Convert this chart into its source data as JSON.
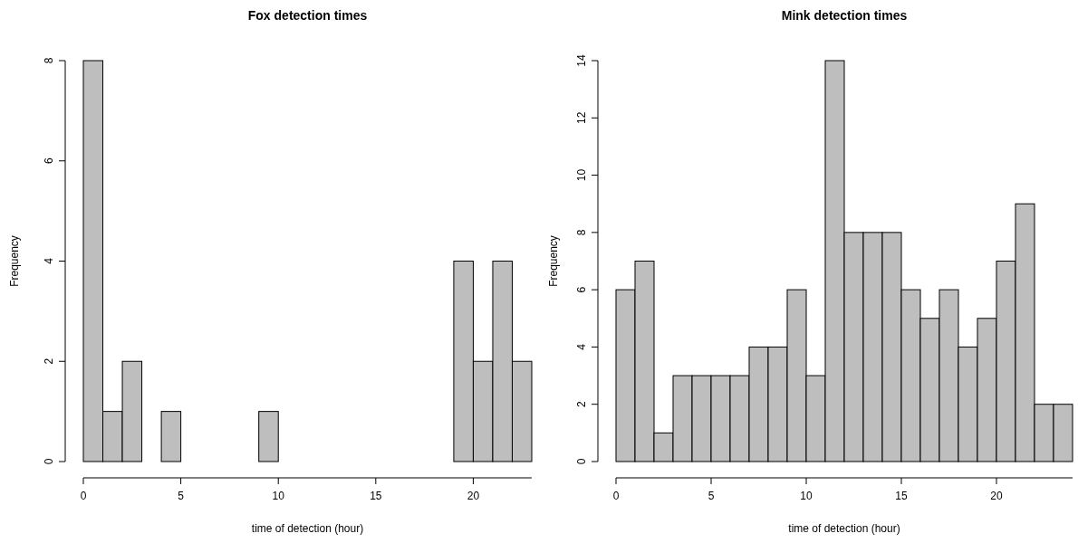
{
  "chart_data": [
    {
      "type": "histogram",
      "title": "Fox detection times",
      "xlabel": "time of detection (hour)",
      "ylabel": "Frequency",
      "bins": [
        0,
        1,
        2,
        3,
        4,
        5,
        6,
        7,
        8,
        9,
        10,
        11,
        12,
        13,
        14,
        15,
        16,
        17,
        18,
        19,
        20,
        21,
        22,
        23
      ],
      "values": [
        8,
        1,
        2,
        0,
        1,
        0,
        0,
        0,
        0,
        1,
        0,
        0,
        0,
        0,
        0,
        0,
        0,
        0,
        0,
        4,
        2,
        4,
        2
      ],
      "color": "#bebebe",
      "xlim": [
        0,
        23
      ],
      "xticks": [
        0,
        5,
        10,
        15,
        20
      ],
      "ylim": [
        0,
        8
      ],
      "yticks": [
        0,
        2,
        4,
        6,
        8
      ]
    },
    {
      "type": "histogram",
      "title": "Mink detection times",
      "xlabel": "time of detection (hour)",
      "ylabel": "Frequency",
      "bins": [
        0,
        1,
        2,
        3,
        4,
        5,
        6,
        7,
        8,
        9,
        10,
        11,
        12,
        13,
        14,
        15,
        16,
        17,
        18,
        19,
        20,
        21,
        22,
        23,
        24
      ],
      "values": [
        6,
        7,
        1,
        3,
        3,
        3,
        3,
        4,
        4,
        6,
        3,
        14,
        8,
        8,
        8,
        6,
        5,
        6,
        4,
        5,
        7,
        9,
        2,
        2
      ],
      "color": "#bebebe",
      "xlim": [
        0,
        24
      ],
      "xticks": [
        0,
        5,
        10,
        15,
        20
      ],
      "ylim": [
        0,
        14
      ],
      "yticks": [
        0,
        2,
        4,
        6,
        8,
        10,
        12,
        14
      ]
    }
  ]
}
